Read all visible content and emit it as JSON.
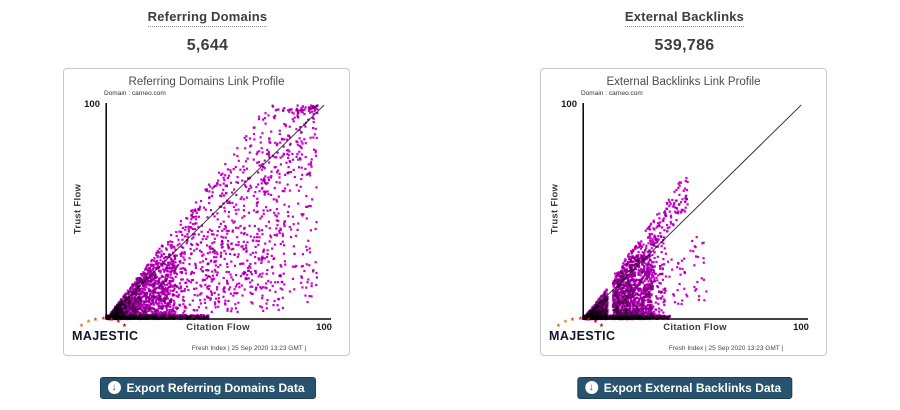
{
  "panels": [
    {
      "heading": "Referring Domains",
      "value": "5,644",
      "export_label": "Export Referring Domains Data"
    },
    {
      "heading": "External Backlinks",
      "value": "539,786",
      "export_label": "Export External Backlinks Data"
    }
  ],
  "colors": {
    "point_color": "#cc00cc",
    "button_bg": "#27536e",
    "button_text": "#ffffff",
    "axis_color": "#000000",
    "reference_line_color": "#3a3a3a",
    "logo_star_colors": [
      "#d86a10",
      "#e07b12",
      "#d0490b",
      "#c43608",
      "#b82505",
      "#a81203",
      "#8f0a02"
    ]
  },
  "chart_data": [
    {
      "type": "scatter",
      "title": "Referring Domains Link Profile",
      "subtitle": "Domain : carneo.com",
      "xlabel": "Citation Flow",
      "ylabel": "Trust Flow",
      "xlim": [
        0,
        100
      ],
      "ylim": [
        0,
        100
      ],
      "x_tick_labels": [
        "100"
      ],
      "y_tick_labels": [
        "100"
      ],
      "grid": false,
      "legend": false,
      "brand": "MAJESTIC",
      "footer_note": "Fresh Index | 25 Sep 2020 13:23 GMT |",
      "point_color": "#cc00cc",
      "reference_line": {
        "from": [
          0,
          0
        ],
        "to": [
          100,
          100
        ]
      },
      "seed": 42,
      "gaps": [],
      "clusters": [
        {
          "name": "dense-bottom-left-core",
          "count": 1000,
          "x": [
            1,
            32
          ],
          "xpow": 1.25,
          "y_mode": "ratio",
          "ratio": [
            0,
            1.25
          ],
          "rpow": 1.7,
          "y_clip": 30
        },
        {
          "name": "main-triangular-cloud",
          "count": 1500,
          "x": [
            4,
            97
          ],
          "xpow": 1.55,
          "y_mode": "ratio",
          "ratio": [
            0.05,
            1.35
          ],
          "rpow": 0.85
        },
        {
          "name": "bottom-axis-row",
          "count": 650,
          "x": [
            0,
            47
          ],
          "xpow": 1.2,
          "y_mode": "band",
          "y": [
            0,
            1.8
          ],
          "ignore_gaps": true
        },
        {
          "name": "right-sparse-low",
          "count": 120,
          "x": [
            45,
            82
          ],
          "xpow": 1.0,
          "y_mode": "ratio",
          "ratio": [
            0.1,
            0.6
          ],
          "rpow": 1.0
        },
        {
          "name": "upper-right-near-diagonal",
          "count": 70,
          "x": [
            70,
            97
          ],
          "xpow": 0.9,
          "y_mode": "ratio",
          "ratio": [
            0.8,
            1.12
          ],
          "rpow": 1.0
        }
      ]
    },
    {
      "type": "scatter",
      "title": "External Backlinks Link Profile",
      "subtitle": "Domain : carneo.com",
      "xlabel": "Citation Flow",
      "ylabel": "Trust Flow",
      "xlim": [
        0,
        100
      ],
      "ylim": [
        0,
        100
      ],
      "x_tick_labels": [
        "100"
      ],
      "y_tick_labels": [
        "100"
      ],
      "grid": false,
      "legend": false,
      "brand": "MAJESTIC",
      "footer_note": "Fresh Index | 25 Sep 2020 13:23 GMT |",
      "point_color": "#cc00cc",
      "reference_line": {
        "from": [
          0,
          0
        ],
        "to": [
          100,
          100
        ]
      },
      "seed": 7,
      "gaps": [
        [
          11.2,
          13.6
        ]
      ],
      "clusters": [
        {
          "name": "dense-bottom-left-core",
          "count": 1700,
          "x": [
            1,
            32
          ],
          "xpow": 1.2,
          "y_mode": "ratio",
          "ratio": [
            0,
            1.3
          ],
          "rpow": 1.6,
          "y_clip": 30
        },
        {
          "name": "mid-shoulder",
          "count": 500,
          "x": [
            3,
            38
          ],
          "xpow": 1.1,
          "y_mode": "ratio",
          "ratio": [
            0,
            1.1
          ],
          "rpow": 1.3,
          "y_clip": 40
        },
        {
          "name": "bottom-axis-row",
          "count": 520,
          "x": [
            0,
            40
          ],
          "xpow": 1.15,
          "y_mode": "band",
          "y": [
            0,
            1.6
          ],
          "ignore_gaps": true
        },
        {
          "name": "steep-spike-band",
          "count": 240,
          "x": [
            12,
            48
          ],
          "xpow": 0.95,
          "y_mode": "ratio",
          "ratio": [
            1.05,
            1.45
          ],
          "rpow": 1.0,
          "y_clip": 66
        },
        {
          "name": "right-outliers",
          "count": 50,
          "x": [
            36,
            57
          ],
          "xpow": 1.0,
          "y_mode": "ratio",
          "ratio": [
            0.15,
            0.75
          ],
          "rpow": 1.0
        }
      ]
    }
  ]
}
